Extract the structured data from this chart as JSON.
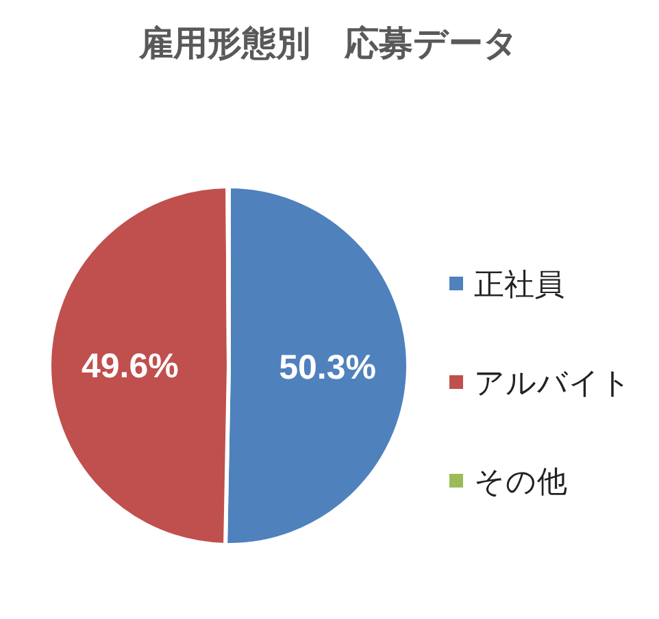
{
  "chart_data": {
    "type": "pie",
    "title": "雇用形態別　応募データ",
    "categories": [
      "正社員",
      "アルバイト",
      "その他"
    ],
    "values": [
      50.3,
      49.6,
      0.1
    ],
    "colors": [
      "#4f81bd",
      "#c0504d",
      "#9bbb59"
    ],
    "value_labels": [
      "50.3%",
      "49.6%",
      null
    ],
    "legend": "right"
  }
}
